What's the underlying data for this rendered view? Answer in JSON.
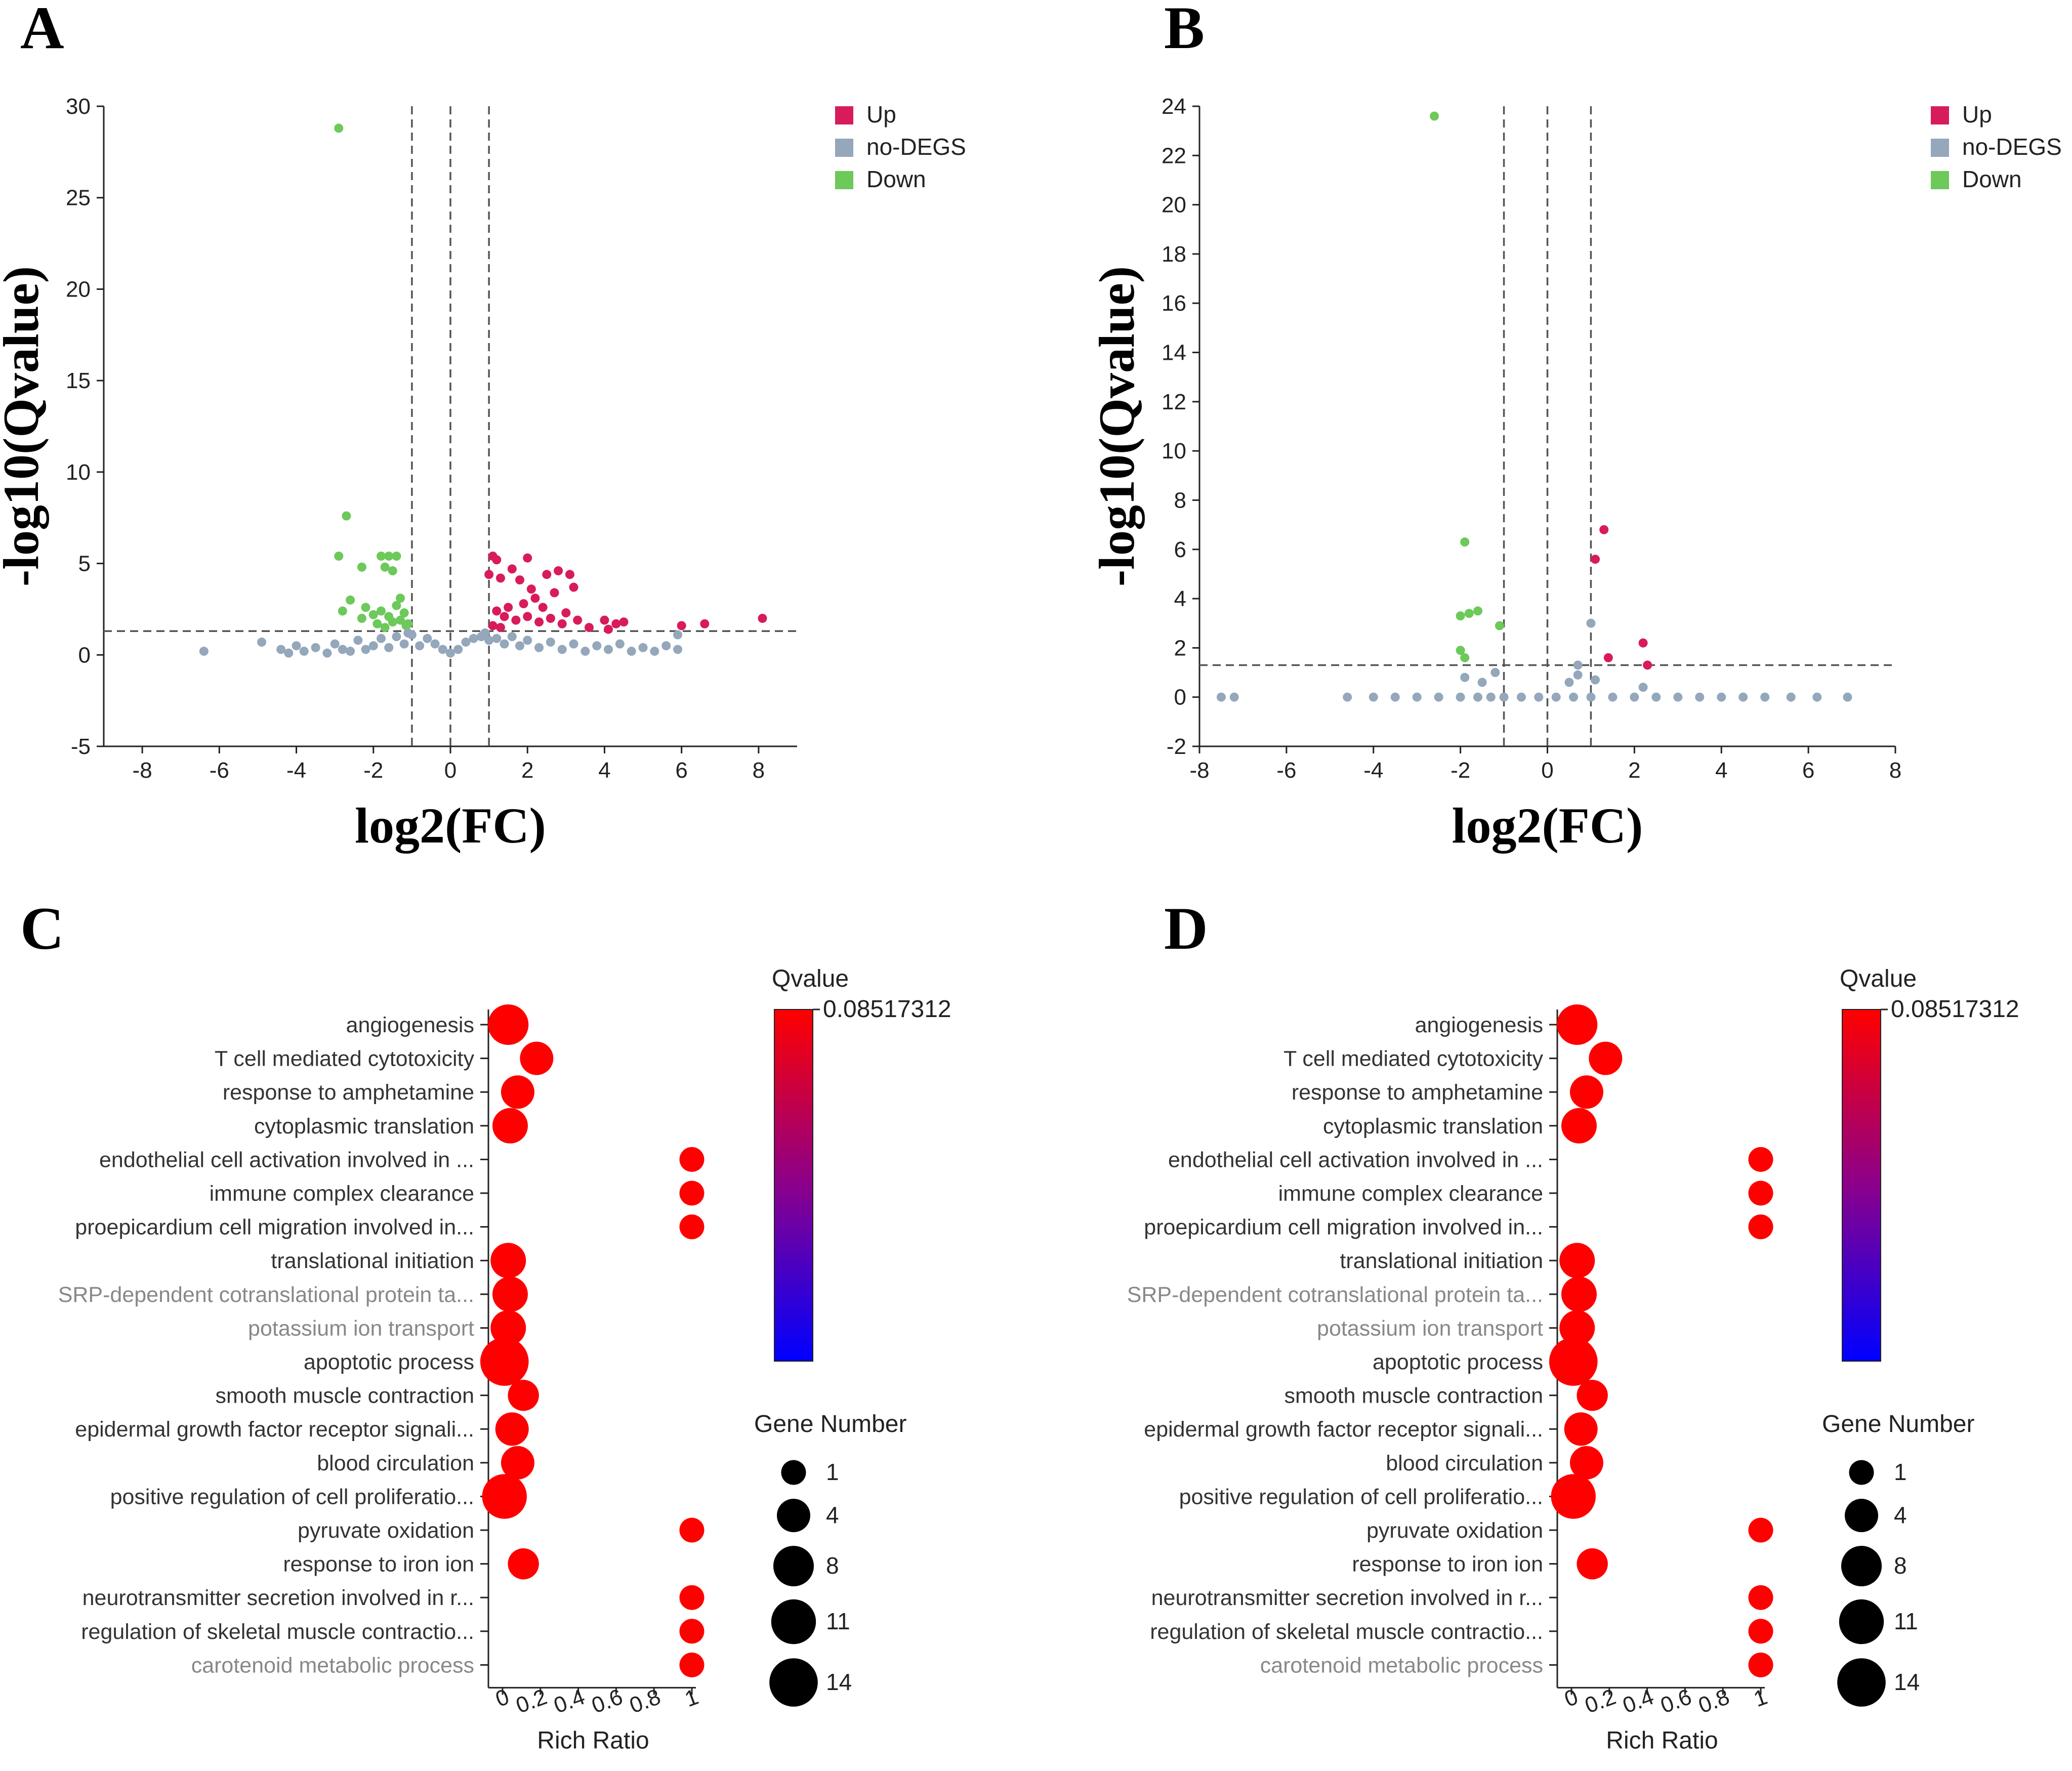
{
  "panels": {
    "A": {
      "letter": "A"
    },
    "B": {
      "letter": "B"
    },
    "C": {
      "letter": "C"
    },
    "D": {
      "letter": "D"
    }
  },
  "colors": {
    "up": "#d81b5a",
    "nodegs": "#94a7bb",
    "down": "#6cc95a",
    "dot_red": "#ff0000",
    "cb_low": "#0000ff",
    "cb_mid": "#8b008b",
    "cb_high": "#ff0000"
  },
  "chart_data": [
    {
      "panel": "A",
      "type": "scatter",
      "xlabel": "log2(FC)",
      "ylabel": "-log10(Qvalue)",
      "xlim": [
        -9,
        9
      ],
      "ylim": [
        -5,
        30
      ],
      "xticks": [
        -8,
        -6,
        -4,
        -2,
        0,
        2,
        4,
        6,
        8
      ],
      "yticks": [
        -5,
        0,
        5,
        10,
        15,
        20,
        25,
        30
      ],
      "thresholds": {
        "fc": [
          -1,
          0,
          1
        ],
        "q": 1.3
      },
      "legend": [
        "Up",
        "no-DEGS",
        "Down"
      ],
      "series": [
        {
          "name": "Down",
          "points": [
            [
              -2.9,
              28.8
            ],
            [
              -2.7,
              7.6
            ],
            [
              -2.9,
              5.4
            ],
            [
              -2.3,
              4.8
            ],
            [
              -1.8,
              5.4
            ],
            [
              -1.6,
              5.4
            ],
            [
              -1.4,
              5.4
            ],
            [
              -1.7,
              4.8
            ],
            [
              -1.5,
              4.6
            ],
            [
              -2.6,
              3.0
            ],
            [
              -2.2,
              2.6
            ],
            [
              -2.0,
              2.2
            ],
            [
              -1.8,
              2.4
            ],
            [
              -1.6,
              2.1
            ],
            [
              -1.4,
              2.7
            ],
            [
              -1.3,
              1.9
            ],
            [
              -1.2,
              2.3
            ],
            [
              -1.1,
              1.7
            ],
            [
              -1.9,
              1.7
            ],
            [
              -1.7,
              1.5
            ],
            [
              -1.5,
              1.8
            ],
            [
              -2.3,
              2.0
            ],
            [
              -2.8,
              2.4
            ],
            [
              -1.3,
              3.1
            ],
            [
              -1.15,
              1.6
            ]
          ]
        },
        {
          "name": "Up",
          "points": [
            [
              1.1,
              5.4
            ],
            [
              1.2,
              5.2
            ],
            [
              1.0,
              4.4
            ],
            [
              1.3,
              4.2
            ],
            [
              1.6,
              4.7
            ],
            [
              2.0,
              5.3
            ],
            [
              1.8,
              4.1
            ],
            [
              2.1,
              3.6
            ],
            [
              2.5,
              4.4
            ],
            [
              2.8,
              4.6
            ],
            [
              3.1,
              4.4
            ],
            [
              3.2,
              3.7
            ],
            [
              2.7,
              3.4
            ],
            [
              2.2,
              3.1
            ],
            [
              1.9,
              2.8
            ],
            [
              1.5,
              2.6
            ],
            [
              1.2,
              2.4
            ],
            [
              1.4,
              2.1
            ],
            [
              1.7,
              1.9
            ],
            [
              2.0,
              2.1
            ],
            [
              2.3,
              1.8
            ],
            [
              2.6,
              2.0
            ],
            [
              2.9,
              1.7
            ],
            [
              3.3,
              1.9
            ],
            [
              3.6,
              1.5
            ],
            [
              4.0,
              1.9
            ],
            [
              4.3,
              1.7
            ],
            [
              4.5,
              1.8
            ],
            [
              4.1,
              1.4
            ],
            [
              6.0,
              1.6
            ],
            [
              6.6,
              1.7
            ],
            [
              8.1,
              2.0
            ],
            [
              1.1,
              1.6
            ],
            [
              1.3,
              1.5
            ],
            [
              3.0,
              2.3
            ],
            [
              2.4,
              2.6
            ]
          ]
        },
        {
          "name": "no-DEGS",
          "points": [
            [
              -6.4,
              0.2
            ],
            [
              -4.9,
              0.7
            ],
            [
              -4.4,
              0.3
            ],
            [
              -4.2,
              0.1
            ],
            [
              -4.0,
              0.5
            ],
            [
              -3.8,
              0.2
            ],
            [
              -3.5,
              0.4
            ],
            [
              -3.2,
              0.1
            ],
            [
              -3.0,
              0.6
            ],
            [
              -2.8,
              0.3
            ],
            [
              -2.6,
              0.2
            ],
            [
              -2.4,
              0.8
            ],
            [
              -2.2,
              0.3
            ],
            [
              -2.0,
              0.5
            ],
            [
              -1.8,
              0.9
            ],
            [
              -1.6,
              0.4
            ],
            [
              -1.4,
              1.0
            ],
            [
              -1.2,
              0.6
            ],
            [
              -1.0,
              1.1
            ],
            [
              -0.8,
              0.5
            ],
            [
              -0.6,
              0.9
            ],
            [
              -0.4,
              0.6
            ],
            [
              -0.2,
              0.3
            ],
            [
              0.0,
              0.1
            ],
            [
              0.2,
              0.3
            ],
            [
              0.4,
              0.7
            ],
            [
              0.6,
              0.9
            ],
            [
              0.8,
              1.0
            ],
            [
              1.0,
              0.8
            ],
            [
              1.2,
              0.9
            ],
            [
              1.4,
              0.6
            ],
            [
              1.6,
              1.0
            ],
            [
              1.8,
              0.5
            ],
            [
              2.0,
              0.8
            ],
            [
              2.3,
              0.4
            ],
            [
              2.6,
              0.7
            ],
            [
              2.9,
              0.3
            ],
            [
              3.2,
              0.6
            ],
            [
              3.5,
              0.2
            ],
            [
              3.8,
              0.5
            ],
            [
              4.1,
              0.3
            ],
            [
              4.4,
              0.6
            ],
            [
              4.7,
              0.2
            ],
            [
              5.0,
              0.4
            ],
            [
              5.3,
              0.2
            ],
            [
              5.6,
              0.5
            ],
            [
              5.9,
              0.3
            ],
            [
              5.9,
              1.1
            ],
            [
              -1.1,
              1.2
            ],
            [
              0.9,
              1.2
            ]
          ]
        }
      ]
    },
    {
      "panel": "B",
      "type": "scatter",
      "xlabel": "log2(FC)",
      "ylabel": "-log10(Qvalue)",
      "xlim": [
        -8,
        8
      ],
      "ylim": [
        -2,
        24
      ],
      "xticks": [
        -8,
        -6,
        -4,
        -2,
        0,
        2,
        4,
        6,
        8
      ],
      "yticks": [
        -2,
        0,
        2,
        4,
        6,
        8,
        10,
        12,
        14,
        16,
        18,
        20,
        22,
        24
      ],
      "thresholds": {
        "fc": [
          -1,
          0,
          1
        ],
        "q": 1.3
      },
      "legend": [
        "Up",
        "no-DEGS",
        "Down"
      ],
      "series": [
        {
          "name": "Down",
          "points": [
            [
              -2.6,
              23.6
            ],
            [
              -1.9,
              6.3
            ],
            [
              -2.0,
              3.3
            ],
            [
              -1.8,
              3.4
            ],
            [
              -1.6,
              3.5
            ],
            [
              -1.1,
              2.9
            ],
            [
              -2.0,
              1.9
            ],
            [
              -1.9,
              1.6
            ]
          ]
        },
        {
          "name": "Up",
          "points": [
            [
              1.3,
              6.8
            ],
            [
              1.1,
              5.6
            ],
            [
              1.4,
              1.6
            ],
            [
              2.2,
              2.2
            ],
            [
              2.3,
              1.3
            ]
          ]
        },
        {
          "name": "no-DEGS",
          "points": [
            [
              -7.5,
              0.0
            ],
            [
              -7.2,
              0.0
            ],
            [
              -4.6,
              0.0
            ],
            [
              -4.0,
              0.0
            ],
            [
              -3.5,
              0.0
            ],
            [
              -3.0,
              0.0
            ],
            [
              -2.5,
              0.0
            ],
            [
              -2.0,
              0.0
            ],
            [
              -1.6,
              0.0
            ],
            [
              -1.3,
              0.0
            ],
            [
              -1.0,
              0.0
            ],
            [
              -0.6,
              0.0
            ],
            [
              -0.2,
              0.0
            ],
            [
              0.2,
              0.0
            ],
            [
              0.6,
              0.0
            ],
            [
              1.0,
              0.0
            ],
            [
              1.5,
              0.0
            ],
            [
              2.0,
              0.0
            ],
            [
              2.5,
              0.0
            ],
            [
              3.0,
              0.0
            ],
            [
              3.5,
              0.0
            ],
            [
              4.0,
              0.0
            ],
            [
              4.5,
              0.0
            ],
            [
              5.0,
              0.0
            ],
            [
              5.6,
              0.0
            ],
            [
              6.2,
              0.0
            ],
            [
              6.9,
              0.0
            ],
            [
              -1.9,
              0.8
            ],
            [
              -1.5,
              0.6
            ],
            [
              -1.2,
              1.0
            ],
            [
              0.7,
              0.9
            ],
            [
              0.5,
              0.6
            ],
            [
              1.0,
              3.0
            ],
            [
              1.1,
              0.7
            ],
            [
              2.2,
              0.4
            ],
            [
              0.7,
              1.3
            ]
          ]
        }
      ]
    },
    {
      "panel": "C",
      "type": "scatter",
      "xlabel": "Rich Ratio",
      "xticks": [
        "0",
        "0.2",
        "0.4",
        "0.6",
        "0.8",
        "1"
      ],
      "xlim": [
        0,
        1
      ],
      "colorbar_title": "Qvalue",
      "colorbar_max_label": "0.08517312",
      "size_legend_title": "Gene Number",
      "size_legend": [
        1,
        4,
        8,
        11,
        14
      ],
      "terms": [
        {
          "label": "angiogenesis",
          "ratio": 0.03,
          "genes": 8,
          "grey": false
        },
        {
          "label": "T cell mediated cytotoxicity",
          "ratio": 0.18,
          "genes": 4,
          "grey": false
        },
        {
          "label": "response to amphetamine",
          "ratio": 0.08,
          "genes": 4,
          "grey": false
        },
        {
          "label": "cytoplasmic translation",
          "ratio": 0.04,
          "genes": 5,
          "grey": false
        },
        {
          "label": "endothelial cell activation involved in ...",
          "ratio": 1.0,
          "genes": 1,
          "grey": false
        },
        {
          "label": "immune complex clearance",
          "ratio": 1.0,
          "genes": 1,
          "grey": false
        },
        {
          "label": "proepicardium cell migration involved in...",
          "ratio": 1.0,
          "genes": 1,
          "grey": false
        },
        {
          "label": "translational initiation",
          "ratio": 0.03,
          "genes": 5,
          "grey": false
        },
        {
          "label": "SRP-dependent cotranslational protein ta...",
          "ratio": 0.04,
          "genes": 5,
          "grey": true
        },
        {
          "label": "potassium ion transport",
          "ratio": 0.03,
          "genes": 5,
          "grey": true
        },
        {
          "label": "apoptotic process",
          "ratio": 0.01,
          "genes": 14,
          "grey": false
        },
        {
          "label": "smooth muscle contraction",
          "ratio": 0.11,
          "genes": 3,
          "grey": false
        },
        {
          "label": "epidermal growth factor receptor signali...",
          "ratio": 0.05,
          "genes": 4,
          "grey": false
        },
        {
          "label": "blood circulation",
          "ratio": 0.08,
          "genes": 4,
          "grey": false
        },
        {
          "label": "positive regulation of cell proliferatio...",
          "ratio": 0.01,
          "genes": 11,
          "grey": false
        },
        {
          "label": "pyruvate oxidation",
          "ratio": 1.0,
          "genes": 1,
          "grey": false
        },
        {
          "label": "response to iron ion",
          "ratio": 0.11,
          "genes": 3,
          "grey": false
        },
        {
          "label": "neurotransmitter secretion involved in r...",
          "ratio": 1.0,
          "genes": 1,
          "grey": false
        },
        {
          "label": "regulation of skeletal muscle contractio...",
          "ratio": 1.0,
          "genes": 1,
          "grey": false
        },
        {
          "label": "carotenoid metabolic process",
          "ratio": 1.0,
          "genes": 1,
          "grey": true
        }
      ]
    },
    {
      "panel": "D",
      "type": "scatter",
      "xlabel": "Rich Ratio",
      "xticks": [
        "0",
        "0.2",
        "0.4",
        "0.6",
        "0.8",
        "1"
      ],
      "xlim": [
        0,
        1
      ],
      "colorbar_title": "Qvalue",
      "colorbar_max_label": "0.08517312",
      "size_legend_title": "Gene Number",
      "size_legend": [
        1,
        4,
        8,
        11,
        14
      ],
      "terms": [
        {
          "label": "angiogenesis",
          "ratio": 0.03,
          "genes": 8,
          "grey": false
        },
        {
          "label": "T cell mediated cytotoxicity",
          "ratio": 0.18,
          "genes": 4,
          "grey": false
        },
        {
          "label": "response to amphetamine",
          "ratio": 0.08,
          "genes": 4,
          "grey": false
        },
        {
          "label": "cytoplasmic translation",
          "ratio": 0.04,
          "genes": 5,
          "grey": false
        },
        {
          "label": "endothelial cell activation involved in ...",
          "ratio": 1.0,
          "genes": 1,
          "grey": false
        },
        {
          "label": "immune complex clearance",
          "ratio": 1.0,
          "genes": 1,
          "grey": false
        },
        {
          "label": "proepicardium cell migration involved in...",
          "ratio": 1.0,
          "genes": 1,
          "grey": false
        },
        {
          "label": "translational initiation",
          "ratio": 0.03,
          "genes": 5,
          "grey": false
        },
        {
          "label": "SRP-dependent cotranslational protein ta...",
          "ratio": 0.04,
          "genes": 5,
          "grey": true
        },
        {
          "label": "potassium ion transport",
          "ratio": 0.03,
          "genes": 5,
          "grey": true
        },
        {
          "label": "apoptotic process",
          "ratio": 0.01,
          "genes": 14,
          "grey": false
        },
        {
          "label": "smooth muscle contraction",
          "ratio": 0.11,
          "genes": 3,
          "grey": false
        },
        {
          "label": "epidermal growth factor receptor signali...",
          "ratio": 0.05,
          "genes": 4,
          "grey": false
        },
        {
          "label": "blood circulation",
          "ratio": 0.08,
          "genes": 4,
          "grey": false
        },
        {
          "label": "positive regulation of cell proliferatio...",
          "ratio": 0.01,
          "genes": 11,
          "grey": false
        },
        {
          "label": "pyruvate oxidation",
          "ratio": 1.0,
          "genes": 1,
          "grey": false
        },
        {
          "label": "response to iron ion",
          "ratio": 0.11,
          "genes": 3,
          "grey": false
        },
        {
          "label": "neurotransmitter secretion involved in r...",
          "ratio": 1.0,
          "genes": 1,
          "grey": false
        },
        {
          "label": "regulation of skeletal muscle contractio...",
          "ratio": 1.0,
          "genes": 1,
          "grey": false
        },
        {
          "label": "carotenoid metabolic process",
          "ratio": 1.0,
          "genes": 1,
          "grey": true
        }
      ]
    }
  ]
}
